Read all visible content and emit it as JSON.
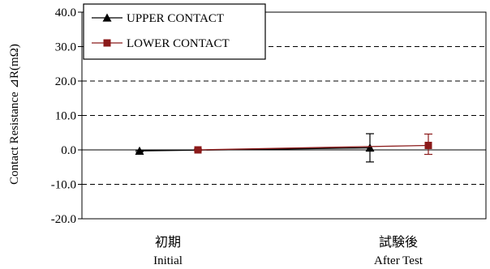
{
  "chart_data": {
    "type": "line",
    "ylabel": "Contact Resistance ⊿R(mΩ)",
    "ylim": [
      -20,
      40
    ],
    "yticks": [
      -20,
      -10,
      0,
      10,
      20,
      30,
      40
    ],
    "ytick_labels": [
      "-20.0",
      "-10.0",
      "0.0",
      "10.0",
      "20.0",
      "30.0",
      "40.0"
    ],
    "grid": "horizontal-dashed",
    "legend_position": "top-left",
    "categories": [
      {
        "jp": "初期",
        "en": "Initial"
      },
      {
        "jp": "試験後",
        "en": "After Test"
      }
    ],
    "series": [
      {
        "name": "UPPER CONTACT",
        "color": "#000000",
        "marker": "triangle",
        "values": [
          -0.3,
          0.6
        ],
        "err_low": [
          -0.5,
          -3.5
        ],
        "err_high": [
          -0.1,
          4.7
        ]
      },
      {
        "name": "LOWER CONTACT",
        "color": "#8b1a1a",
        "marker": "square",
        "values": [
          0.0,
          1.3
        ],
        "err_low": [
          -0.2,
          -1.3
        ],
        "err_high": [
          0.2,
          4.6
        ]
      }
    ]
  }
}
